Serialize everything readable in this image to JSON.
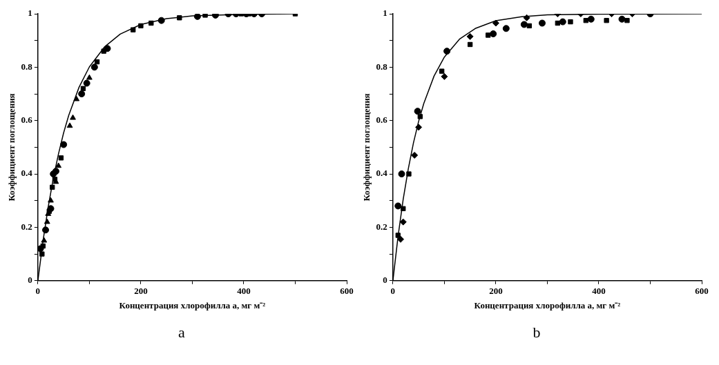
{
  "chart_data": [
    {
      "type": "scatter",
      "xlabel": "Концентрация хлорофилла a, мг м⁻²",
      "ylabel": "Коэффициент поглощения",
      "annotations": [
        "a"
      ],
      "xlim": [
        0,
        600
      ],
      "ylim": [
        0,
        1
      ],
      "xticks": [
        0,
        {
          "value": 100,
          "label": null
        },
        200,
        {
          "value": 300,
          "label": null
        },
        400,
        {
          "value": 500,
          "label": null
        },
        600
      ],
      "yticks": [
        0,
        {
          "value": 0.1,
          "label": null
        },
        0.2,
        {
          "value": 0.3,
          "label": null
        },
        0.4,
        {
          "value": 0.5,
          "label": null
        },
        0.6,
        {
          "value": 0.7,
          "label": null
        },
        0.8,
        {
          "value": 0.9,
          "label": null
        },
        1
      ],
      "grid": false,
      "series": [
        {
          "type": "line",
          "color": "#000000",
          "marker": "none",
          "x": [
            0,
            10,
            20,
            30,
            40,
            50,
            60,
            80,
            100,
            130,
            160,
            200,
            250,
            300,
            400,
            500
          ],
          "values": [
            0,
            0.149,
            0.276,
            0.384,
            0.475,
            0.554,
            0.62,
            0.725,
            0.801,
            0.877,
            0.924,
            0.96,
            0.982,
            0.992,
            0.998,
            1.0
          ]
        },
        {
          "color": "#000000",
          "marker": "circle",
          "x": [
            5,
            15,
            25,
            30,
            35,
            50,
            85,
            95,
            110,
            135,
            240,
            310,
            345,
            370,
            385,
            405,
            420,
            435
          ],
          "values": [
            0.12,
            0.19,
            0.27,
            0.4,
            0.41,
            0.51,
            0.7,
            0.74,
            0.8,
            0.87,
            0.975,
            0.99,
            0.995,
            1.0,
            1.0,
            1.0,
            1.0,
            1.0
          ]
        },
        {
          "color": "#000000",
          "marker": "square",
          "x": [
            8,
            10,
            22,
            28,
            33,
            45,
            88,
            115,
            128,
            185,
            200,
            220,
            275,
            325,
            395,
            410,
            500
          ],
          "values": [
            0.1,
            0.13,
            0.26,
            0.35,
            0.38,
            0.46,
            0.72,
            0.82,
            0.86,
            0.94,
            0.955,
            0.965,
            0.985,
            0.995,
            1.0,
            1.0,
            1.0
          ]
        },
        {
          "color": "#000000",
          "marker": "triangle",
          "x": [
            12,
            18,
            20,
            25,
            35,
            40,
            62,
            68,
            75,
            88,
            100
          ],
          "values": [
            0.15,
            0.22,
            0.25,
            0.3,
            0.37,
            0.43,
            0.58,
            0.61,
            0.68,
            null,
            0.76
          ]
        }
      ]
    },
    {
      "type": "scatter",
      "xlabel": "Концентрация хлорофилла a, мг м⁻²",
      "ylabel": "Коэффициент поглощения",
      "annotations": [
        "b"
      ],
      "xlim": [
        0,
        600
      ],
      "ylim": [
        0,
        1
      ],
      "xticks": [
        0,
        {
          "value": 100,
          "label": null
        },
        200,
        {
          "value": 300,
          "label": null
        },
        400,
        {
          "value": 500,
          "label": null
        },
        600
      ],
      "yticks": [
        0,
        {
          "value": 0.1,
          "label": null
        },
        0.2,
        {
          "value": 0.3,
          "label": null
        },
        0.4,
        {
          "value": 0.5,
          "label": null
        },
        0.6,
        {
          "value": 0.7,
          "label": null
        },
        0.8,
        {
          "value": 0.9,
          "label": null
        },
        1
      ],
      "grid": false,
      "series": [
        {
          "type": "line",
          "color": "#000000",
          "marker": "none",
          "x": [
            0,
            10,
            20,
            30,
            40,
            50,
            60,
            80,
            100,
            130,
            160,
            200,
            250,
            300,
            400,
            600
          ],
          "values": [
            0,
            0.166,
            0.305,
            0.42,
            0.517,
            0.597,
            0.664,
            0.767,
            0.838,
            0.906,
            0.945,
            0.974,
            0.989,
            0.996,
            0.999,
            1.0
          ]
        },
        {
          "color": "#000000",
          "marker": "circle",
          "x": [
            10,
            17,
            48,
            105,
            195,
            220,
            255,
            290,
            330,
            385,
            445,
            500
          ],
          "values": [
            0.28,
            0.4,
            0.635,
            0.86,
            0.925,
            0.945,
            0.96,
            0.965,
            0.97,
            0.98,
            0.98,
            1.0
          ]
        },
        {
          "color": "#000000",
          "marker": "square",
          "x": [
            10,
            20,
            31,
            53,
            95,
            150,
            185,
            265,
            320,
            345,
            375,
            415,
            455
          ],
          "values": [
            0.17,
            0.27,
            0.4,
            0.615,
            0.785,
            0.885,
            0.92,
            0.955,
            0.965,
            0.97,
            0.975,
            0.975,
            0.975
          ]
        },
        {
          "color": "#000000",
          "marker": "diamond",
          "x": [
            15,
            20,
            42,
            50,
            100,
            150,
            200,
            260,
            320,
            365,
            425,
            465
          ],
          "values": [
            0.155,
            0.22,
            0.47,
            0.575,
            0.765,
            0.915,
            0.965,
            0.985,
            1.0,
            1.0,
            1.0,
            1.0
          ]
        }
      ]
    }
  ]
}
